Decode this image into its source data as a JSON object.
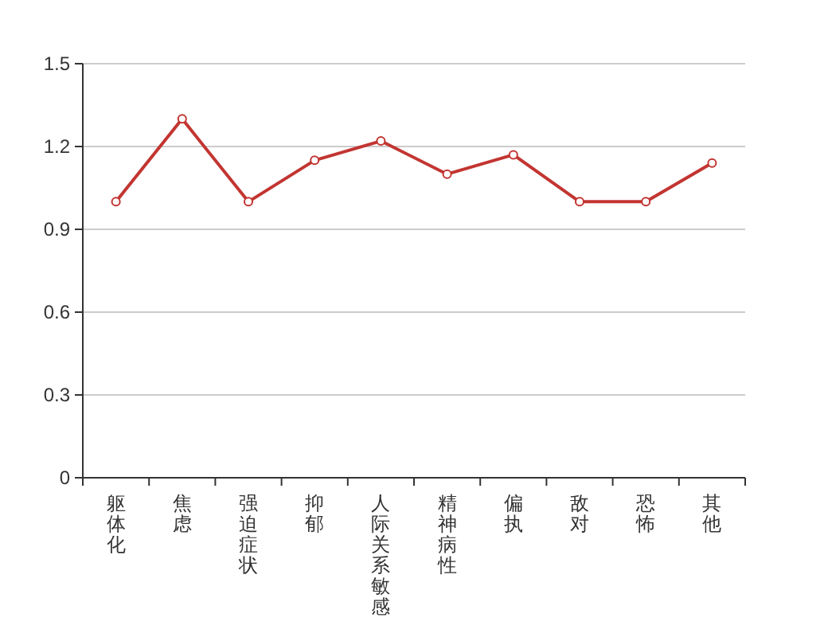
{
  "chart_data": {
    "type": "line",
    "categories": [
      "躯体化",
      "焦虑",
      "强迫症状",
      "抑郁",
      "人际关系敏感",
      "精神病性",
      "偏执",
      "敌对",
      "恐怖",
      "其他"
    ],
    "series": [
      {
        "color": "#c23531",
        "values": [
          1.0,
          1.3,
          1.0,
          1.15,
          1.22,
          1.1,
          1.17,
          1.0,
          1.0,
          1.14
        ]
      }
    ],
    "ylim": [
      0,
      1.5
    ],
    "yticks": [
      0,
      0.3,
      0.6,
      0.9,
      1.2,
      1.5
    ],
    "grid": "y",
    "marker": "circle",
    "line_style": "solid"
  }
}
